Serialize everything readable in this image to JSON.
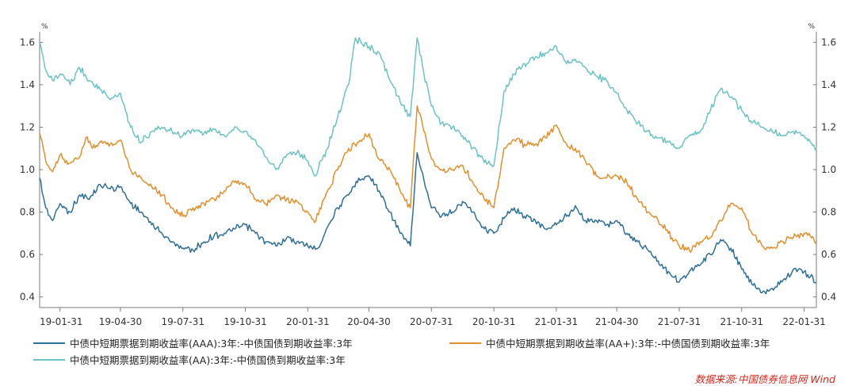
{
  "chart_data": {
    "type": "line",
    "y_unit_left": "%",
    "y_unit_right": "%",
    "ylim": [
      0.35,
      1.65
    ],
    "y_ticks": [
      "1.6",
      "1.4",
      "1.2",
      "1.0",
      "0.8",
      "0.6",
      "0.4"
    ],
    "x_tick_labels": [
      "19-01-31",
      "19-04-30",
      "19-07-31",
      "19-10-31",
      "20-01-31",
      "20-04-30",
      "20-07-31",
      "20-10-31",
      "21-01-31",
      "21-04-30",
      "21-07-31",
      "21-10-31",
      "22-01-31"
    ],
    "x_ticks": [
      "2019-01-31",
      "2019-04-30",
      "2019-07-31",
      "2019-10-31",
      "2020-01-31",
      "2020-04-30",
      "2020-07-31",
      "2020-10-31",
      "2021-01-31",
      "2021-04-30",
      "2021-07-31",
      "2021-10-31",
      "2022-01-31"
    ],
    "xlim": [
      "2019-01-01",
      "2022-02-18"
    ],
    "grid": false,
    "legend_position": "bottom",
    "series": [
      {
        "name": "中债中短期票据到期收益率(AAA):3年:-中债国债到期收益率:3年",
        "color": "#2e6f9a",
        "points": [
          [
            "2019-01-01",
            0.96
          ],
          [
            "2019-01-10",
            0.82
          ],
          [
            "2019-01-20",
            0.76
          ],
          [
            "2019-01-31",
            0.84
          ],
          [
            "2019-02-15",
            0.8
          ],
          [
            "2019-03-01",
            0.88
          ],
          [
            "2019-03-15",
            0.86
          ],
          [
            "2019-03-31",
            0.93
          ],
          [
            "2019-04-15",
            0.91
          ],
          [
            "2019-04-30",
            0.92
          ],
          [
            "2019-05-15",
            0.84
          ],
          [
            "2019-05-31",
            0.8
          ],
          [
            "2019-06-15",
            0.74
          ],
          [
            "2019-06-30",
            0.7
          ],
          [
            "2019-07-15",
            0.66
          ],
          [
            "2019-07-31",
            0.63
          ],
          [
            "2019-08-15",
            0.62
          ],
          [
            "2019-08-31",
            0.66
          ],
          [
            "2019-09-15",
            0.69
          ],
          [
            "2019-09-30",
            0.7
          ],
          [
            "2019-10-15",
            0.72
          ],
          [
            "2019-10-31",
            0.74
          ],
          [
            "2019-11-15",
            0.7
          ],
          [
            "2019-11-30",
            0.66
          ],
          [
            "2019-12-15",
            0.64
          ],
          [
            "2019-12-31",
            0.68
          ],
          [
            "2020-01-15",
            0.66
          ],
          [
            "2020-01-31",
            0.64
          ],
          [
            "2020-02-15",
            0.63
          ],
          [
            "2020-02-29",
            0.73
          ],
          [
            "2020-03-15",
            0.82
          ],
          [
            "2020-03-31",
            0.88
          ],
          [
            "2020-04-15",
            0.96
          ],
          [
            "2020-04-30",
            0.97
          ],
          [
            "2020-05-15",
            0.9
          ],
          [
            "2020-05-31",
            0.8
          ],
          [
            "2020-06-15",
            0.7
          ],
          [
            "2020-06-30",
            0.64
          ],
          [
            "2020-07-10",
            1.08
          ],
          [
            "2020-07-20",
            0.95
          ],
          [
            "2020-07-31",
            0.82
          ],
          [
            "2020-08-15",
            0.78
          ],
          [
            "2020-08-31",
            0.8
          ],
          [
            "2020-09-15",
            0.85
          ],
          [
            "2020-09-30",
            0.8
          ],
          [
            "2020-10-15",
            0.73
          ],
          [
            "2020-10-31",
            0.7
          ],
          [
            "2020-11-15",
            0.77
          ],
          [
            "2020-11-30",
            0.82
          ],
          [
            "2020-12-15",
            0.78
          ],
          [
            "2020-12-31",
            0.76
          ],
          [
            "2021-01-15",
            0.72
          ],
          [
            "2021-01-31",
            0.74
          ],
          [
            "2021-02-15",
            0.78
          ],
          [
            "2021-02-28",
            0.83
          ],
          [
            "2021-03-15",
            0.76
          ],
          [
            "2021-03-31",
            0.76
          ],
          [
            "2021-04-15",
            0.74
          ],
          [
            "2021-04-30",
            0.76
          ],
          [
            "2021-05-15",
            0.7
          ],
          [
            "2021-05-31",
            0.66
          ],
          [
            "2021-06-15",
            0.62
          ],
          [
            "2021-06-30",
            0.57
          ],
          [
            "2021-07-15",
            0.52
          ],
          [
            "2021-07-31",
            0.47
          ],
          [
            "2021-08-15",
            0.52
          ],
          [
            "2021-08-31",
            0.55
          ],
          [
            "2021-09-15",
            0.6
          ],
          [
            "2021-09-30",
            0.67
          ],
          [
            "2021-10-15",
            0.63
          ],
          [
            "2021-10-31",
            0.53
          ],
          [
            "2021-11-15",
            0.46
          ],
          [
            "2021-11-30",
            0.42
          ],
          [
            "2021-12-15",
            0.44
          ],
          [
            "2021-12-31",
            0.48
          ],
          [
            "2022-01-15",
            0.53
          ],
          [
            "2022-01-31",
            0.52
          ],
          [
            "2022-02-18",
            0.47
          ]
        ]
      },
      {
        "name": "中债中短期票据到期收益率(AA+):3年:-中债国债到期收益率:3年",
        "color": "#e38f2c",
        "points": [
          [
            "2019-01-01",
            1.17
          ],
          [
            "2019-01-10",
            1.04
          ],
          [
            "2019-01-20",
            0.99
          ],
          [
            "2019-01-31",
            1.07
          ],
          [
            "2019-02-15",
            1.03
          ],
          [
            "2019-03-01",
            1.06
          ],
          [
            "2019-03-10",
            1.15
          ],
          [
            "2019-03-20",
            1.1
          ],
          [
            "2019-03-31",
            1.13
          ],
          [
            "2019-04-15",
            1.12
          ],
          [
            "2019-04-30",
            1.14
          ],
          [
            "2019-05-15",
            1.0
          ],
          [
            "2019-05-31",
            0.96
          ],
          [
            "2019-06-15",
            0.92
          ],
          [
            "2019-06-30",
            0.88
          ],
          [
            "2019-07-15",
            0.82
          ],
          [
            "2019-07-31",
            0.78
          ],
          [
            "2019-08-15",
            0.82
          ],
          [
            "2019-08-31",
            0.84
          ],
          [
            "2019-09-15",
            0.86
          ],
          [
            "2019-09-30",
            0.9
          ],
          [
            "2019-10-15",
            0.94
          ],
          [
            "2019-10-31",
            0.93
          ],
          [
            "2019-11-15",
            0.86
          ],
          [
            "2019-11-30",
            0.84
          ],
          [
            "2019-12-15",
            0.88
          ],
          [
            "2019-12-31",
            0.86
          ],
          [
            "2020-01-15",
            0.85
          ],
          [
            "2020-01-31",
            0.8
          ],
          [
            "2020-02-10",
            0.75
          ],
          [
            "2020-02-29",
            0.9
          ],
          [
            "2020-03-15",
            1.0
          ],
          [
            "2020-03-31",
            1.1
          ],
          [
            "2020-04-15",
            1.13
          ],
          [
            "2020-04-30",
            1.17
          ],
          [
            "2020-05-15",
            1.05
          ],
          [
            "2020-05-31",
            1.0
          ],
          [
            "2020-06-15",
            0.9
          ],
          [
            "2020-06-30",
            0.82
          ],
          [
            "2020-07-10",
            1.3
          ],
          [
            "2020-07-20",
            1.18
          ],
          [
            "2020-07-31",
            1.05
          ],
          [
            "2020-08-15",
            1.0
          ],
          [
            "2020-08-31",
            1.0
          ],
          [
            "2020-09-15",
            1.02
          ],
          [
            "2020-09-30",
            0.94
          ],
          [
            "2020-10-15",
            0.88
          ],
          [
            "2020-10-31",
            0.82
          ],
          [
            "2020-11-15",
            1.1
          ],
          [
            "2020-11-30",
            1.14
          ],
          [
            "2020-12-15",
            1.12
          ],
          [
            "2020-12-31",
            1.12
          ],
          [
            "2021-01-15",
            1.15
          ],
          [
            "2021-01-31",
            1.21
          ],
          [
            "2021-02-15",
            1.12
          ],
          [
            "2021-02-28",
            1.1
          ],
          [
            "2021-03-15",
            1.04
          ],
          [
            "2021-03-31",
            0.97
          ],
          [
            "2021-04-15",
            0.96
          ],
          [
            "2021-04-30",
            0.97
          ],
          [
            "2021-05-15",
            0.94
          ],
          [
            "2021-05-31",
            0.86
          ],
          [
            "2021-06-15",
            0.8
          ],
          [
            "2021-06-30",
            0.76
          ],
          [
            "2021-07-15",
            0.7
          ],
          [
            "2021-07-31",
            0.64
          ],
          [
            "2021-08-15",
            0.62
          ],
          [
            "2021-08-31",
            0.66
          ],
          [
            "2021-09-15",
            0.68
          ],
          [
            "2021-09-30",
            0.76
          ],
          [
            "2021-10-15",
            0.84
          ],
          [
            "2021-10-31",
            0.82
          ],
          [
            "2021-11-15",
            0.7
          ],
          [
            "2021-11-30",
            0.64
          ],
          [
            "2021-12-15",
            0.63
          ],
          [
            "2021-12-31",
            0.66
          ],
          [
            "2022-01-15",
            0.68
          ],
          [
            "2022-01-31",
            0.7
          ],
          [
            "2022-02-18",
            0.66
          ]
        ]
      },
      {
        "name": "中债中短期票据到期收益率(AA):3年:-中债国债到期收益率:3年",
        "color": "#6cc3c5",
        "points": [
          [
            "2019-01-01",
            1.6
          ],
          [
            "2019-01-10",
            1.47
          ],
          [
            "2019-01-20",
            1.42
          ],
          [
            "2019-01-31",
            1.45
          ],
          [
            "2019-02-15",
            1.4
          ],
          [
            "2019-03-01",
            1.48
          ],
          [
            "2019-03-15",
            1.42
          ],
          [
            "2019-03-31",
            1.38
          ],
          [
            "2019-04-15",
            1.33
          ],
          [
            "2019-04-30",
            1.36
          ],
          [
            "2019-05-15",
            1.2
          ],
          [
            "2019-05-31",
            1.13
          ],
          [
            "2019-06-15",
            1.18
          ],
          [
            "2019-06-30",
            1.2
          ],
          [
            "2019-07-15",
            1.18
          ],
          [
            "2019-07-31",
            1.16
          ],
          [
            "2019-08-15",
            1.19
          ],
          [
            "2019-08-31",
            1.17
          ],
          [
            "2019-09-15",
            1.19
          ],
          [
            "2019-09-30",
            1.16
          ],
          [
            "2019-10-15",
            1.2
          ],
          [
            "2019-10-31",
            1.18
          ],
          [
            "2019-11-15",
            1.14
          ],
          [
            "2019-11-30",
            1.06
          ],
          [
            "2019-12-15",
            1.0
          ],
          [
            "2019-12-31",
            1.07
          ],
          [
            "2020-01-15",
            1.08
          ],
          [
            "2020-01-31",
            1.04
          ],
          [
            "2020-02-10",
            0.97
          ],
          [
            "2020-02-29",
            1.1
          ],
          [
            "2020-03-15",
            1.25
          ],
          [
            "2020-03-31",
            1.4
          ],
          [
            "2020-04-10",
            1.62
          ],
          [
            "2020-04-30",
            1.58
          ],
          [
            "2020-05-15",
            1.55
          ],
          [
            "2020-05-31",
            1.42
          ],
          [
            "2020-06-15",
            1.32
          ],
          [
            "2020-06-30",
            1.25
          ],
          [
            "2020-07-10",
            1.62
          ],
          [
            "2020-07-20",
            1.45
          ],
          [
            "2020-07-31",
            1.3
          ],
          [
            "2020-08-15",
            1.22
          ],
          [
            "2020-08-31",
            1.2
          ],
          [
            "2020-09-15",
            1.16
          ],
          [
            "2020-09-30",
            1.1
          ],
          [
            "2020-10-15",
            1.05
          ],
          [
            "2020-10-31",
            1.02
          ],
          [
            "2020-11-15",
            1.37
          ],
          [
            "2020-11-30",
            1.45
          ],
          [
            "2020-12-15",
            1.5
          ],
          [
            "2020-12-31",
            1.53
          ],
          [
            "2021-01-15",
            1.55
          ],
          [
            "2021-01-31",
            1.58
          ],
          [
            "2021-02-15",
            1.5
          ],
          [
            "2021-02-28",
            1.52
          ],
          [
            "2021-03-15",
            1.48
          ],
          [
            "2021-03-31",
            1.44
          ],
          [
            "2021-04-15",
            1.42
          ],
          [
            "2021-04-30",
            1.36
          ],
          [
            "2021-05-15",
            1.28
          ],
          [
            "2021-05-31",
            1.22
          ],
          [
            "2021-06-15",
            1.18
          ],
          [
            "2021-06-30",
            1.15
          ],
          [
            "2021-07-15",
            1.13
          ],
          [
            "2021-07-31",
            1.1
          ],
          [
            "2021-08-15",
            1.16
          ],
          [
            "2021-08-31",
            1.18
          ],
          [
            "2021-09-15",
            1.28
          ],
          [
            "2021-09-30",
            1.38
          ],
          [
            "2021-10-15",
            1.34
          ],
          [
            "2021-10-31",
            1.28
          ],
          [
            "2021-11-15",
            1.22
          ],
          [
            "2021-11-30",
            1.2
          ],
          [
            "2021-12-15",
            1.18
          ],
          [
            "2021-12-31",
            1.16
          ],
          [
            "2022-01-15",
            1.18
          ],
          [
            "2022-01-31",
            1.16
          ],
          [
            "2022-02-18",
            1.1
          ]
        ]
      }
    ]
  },
  "legend": {
    "item1": "中债中短期票据到期收益率(AAA):3年:-中债国债到期收益率:3年",
    "item2": "中债中短期票据到期收益率(AA+):3年:-中债国债到期收益率:3年",
    "item3": "中债中短期票据到期收益率(AA):3年:-中债国债到期收益率:3年",
    "color1": "#2e6f9a",
    "color2": "#e38f2c",
    "color3": "#6cc3c5"
  },
  "source": "数据来源:中国债券信息网 Wind"
}
